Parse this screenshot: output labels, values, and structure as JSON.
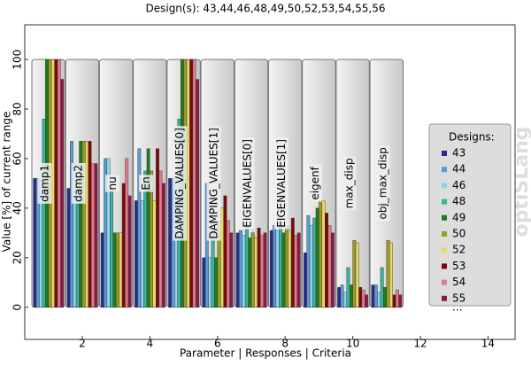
{
  "chart_data": {
    "type": "bar",
    "title": "Design(s): 43,44,46,48,49,50,52,53,54,55,56",
    "x_label": "Parameter | Responses | Criteria",
    "y_label": "Value [%] of current range",
    "x": [
      1,
      2,
      3,
      4,
      5,
      6,
      7,
      8,
      9,
      10,
      11
    ],
    "labels": [
      "damp1",
      "damp2",
      "nu",
      "En",
      "DAMPING_VALUES[0]",
      "DAMPING_VALUES[1]",
      "EIGENVALUES[0]",
      "EIGENVALUES[1]",
      "eigenf",
      "max_disp",
      "obj_max_disp"
    ],
    "series": [
      {
        "name": "43",
        "color": "#2b2b8c",
        "values": [
          52,
          48,
          30,
          43,
          52,
          20,
          30,
          31,
          22,
          8,
          9
        ]
      },
      {
        "name": "44",
        "color": "#5b9bd5",
        "values": [
          52,
          67,
          60,
          64,
          52,
          50,
          31,
          33,
          37,
          9,
          9
        ]
      },
      {
        "name": "46",
        "color": "#8fd3ee",
        "values": [
          52,
          58,
          60,
          43,
          52,
          20,
          29,
          31,
          33,
          6,
          6
        ]
      },
      {
        "name": "48",
        "color": "#3cb39a",
        "values": [
          76,
          52,
          48,
          55,
          76,
          35,
          33,
          35,
          36,
          16,
          16
        ]
      },
      {
        "name": "49",
        "color": "#1e7b1e",
        "values": [
          100,
          67,
          30,
          64,
          100,
          20,
          28,
          30,
          40,
          9,
          8
        ]
      },
      {
        "name": "50",
        "color": "#9a9a2a",
        "values": [
          100,
          67,
          30,
          55,
          100,
          35,
          30,
          33,
          43,
          27,
          27
        ]
      },
      {
        "name": "52",
        "color": "#e8d86a",
        "values": [
          100,
          67,
          30,
          43,
          100,
          40,
          28,
          31,
          43,
          26,
          26
        ]
      },
      {
        "name": "53",
        "color": "#7a0a0a",
        "values": [
          100,
          67,
          50,
          64,
          100,
          45,
          32,
          36,
          38,
          8,
          5
        ]
      },
      {
        "name": "54",
        "color": "#e07a8a",
        "values": [
          100,
          58,
          60,
          55,
          100,
          35,
          29,
          29,
          33,
          7,
          7
        ]
      },
      {
        "name": "55",
        "color": "#8a1a4a",
        "values": [
          92,
          58,
          45,
          50,
          92,
          30,
          30,
          30,
          30,
          5,
          5
        ]
      }
    ],
    "legend_title": "Designs:",
    "legend_more": "...",
    "watermark": "optiSLang",
    "xlim": [
      0.3,
      14.8
    ],
    "xticks": [
      2,
      4,
      6,
      8,
      10,
      12,
      14
    ],
    "ylim": [
      -13,
      114
    ],
    "yticks": [
      0,
      20,
      40,
      60,
      80,
      100
    ]
  }
}
